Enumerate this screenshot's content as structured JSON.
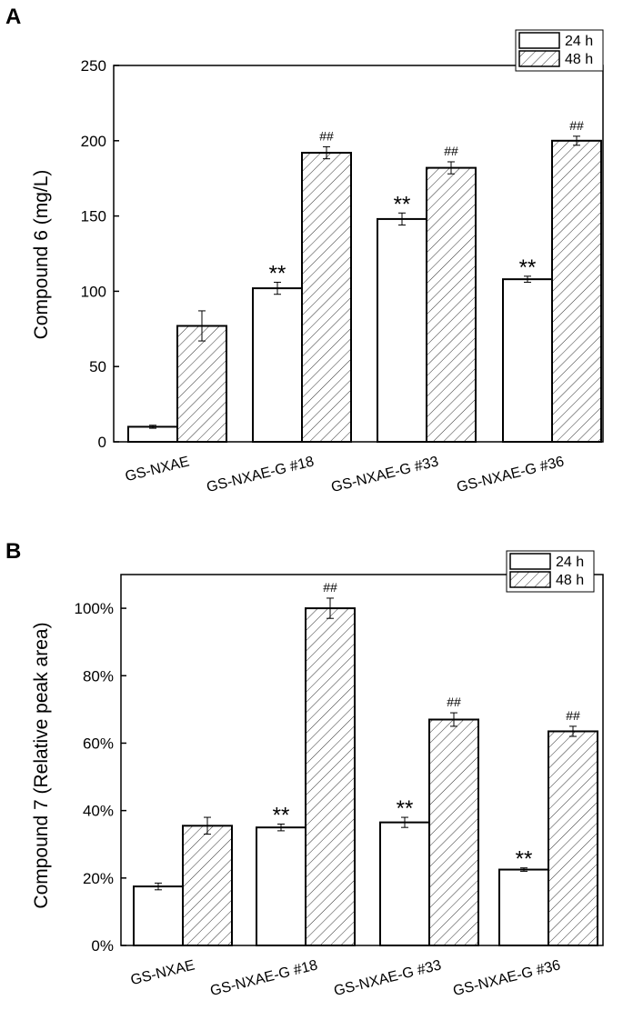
{
  "chart_data": [
    {
      "panel_label": "A",
      "type": "bar",
      "categories": [
        "GS-NXAE",
        "GS-NXAE-G #18",
        "GS-NXAE-G #33",
        "GS-NXAE-G #36"
      ],
      "series": [
        {
          "name": "24 h",
          "values": [
            10,
            102,
            148,
            108
          ],
          "errors": [
            1,
            4,
            4,
            2
          ],
          "annotations": [
            "",
            "**",
            "**",
            "**"
          ],
          "pattern": "none"
        },
        {
          "name": "48 h",
          "values": [
            77,
            192,
            182,
            200
          ],
          "errors": [
            10,
            4,
            4,
            3
          ],
          "annotations": [
            "",
            "##",
            "##",
            "##"
          ],
          "pattern": "hatch"
        }
      ],
      "ylabel": "Compound 6 (mg/L)",
      "ylim": [
        0,
        250
      ],
      "yticks": [
        0,
        50,
        100,
        150,
        200,
        250
      ],
      "ytick_labels": [
        "0",
        "50",
        "100",
        "150",
        "200",
        "250"
      ],
      "legend_position": "top-right",
      "grid": false
    },
    {
      "panel_label": "B",
      "type": "bar",
      "categories": [
        "GS-NXAE",
        "GS-NXAE-G #18",
        "GS-NXAE-G #33",
        "GS-NXAE-G #36"
      ],
      "series": [
        {
          "name": "24 h",
          "values": [
            17.5,
            35,
            36.5,
            22.5
          ],
          "errors": [
            1,
            1,
            1.5,
            0.5
          ],
          "annotations": [
            "",
            "**",
            "**",
            "**"
          ],
          "pattern": "none"
        },
        {
          "name": "48 h",
          "values": [
            35.5,
            100,
            67,
            63.5
          ],
          "errors": [
            2.5,
            3,
            2,
            1.5
          ],
          "annotations": [
            "",
            "##",
            "##",
            "##"
          ],
          "pattern": "hatch"
        }
      ],
      "ylabel": "Compound 7 (Relative peak area)",
      "ylim": [
        0,
        110
      ],
      "yticks": [
        0,
        20,
        40,
        60,
        80,
        100
      ],
      "ytick_labels": [
        "0%",
        "20%",
        "40%",
        "60%",
        "80%",
        "100%"
      ],
      "legend_position": "top-right",
      "grid": false
    }
  ]
}
